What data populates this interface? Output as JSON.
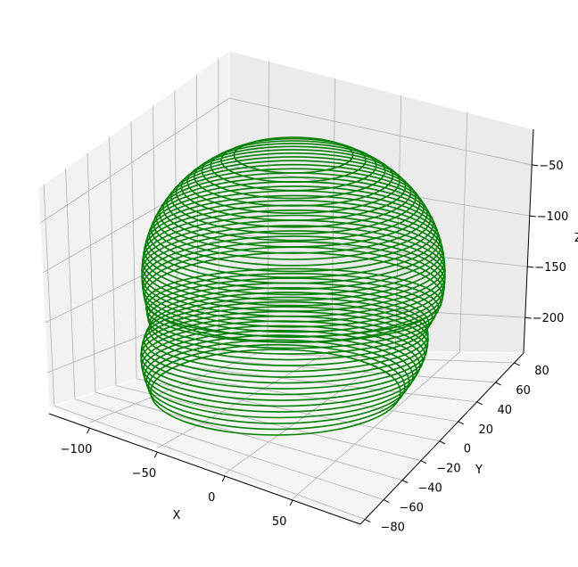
{
  "chart_data": {
    "type": "line3d",
    "title": "",
    "xlabel": "X",
    "ylabel": "Y",
    "zlabel": "Z",
    "xlim": [
      -130,
      100
    ],
    "ylim": [
      -85,
      90
    ],
    "zlim": [
      -235,
      -15
    ],
    "xticks": [
      -100,
      -50,
      0,
      50
    ],
    "yticks": [
      -80,
      -60,
      -40,
      -20,
      0,
      20,
      40,
      60,
      80
    ],
    "zticks": [
      -50,
      -100,
      -150,
      -200
    ],
    "xtick_labels": [
      "−100",
      "−50",
      "0",
      "50"
    ],
    "ytick_labels": [
      "−80",
      "−60",
      "−40",
      "−20",
      "0",
      "20",
      "40",
      "60",
      "80"
    ],
    "ztick_labels": [
      "−50",
      "−100",
      "−150",
      "−200"
    ],
    "grid": true,
    "series": [
      {
        "shape": "spherical spiral (stacked closed rings)",
        "center": [
          -5,
          5,
          -130
        ],
        "radius": 90,
        "z_range": [
          -220,
          -40
        ],
        "rings": 46,
        "color": "#008000"
      }
    ]
  }
}
